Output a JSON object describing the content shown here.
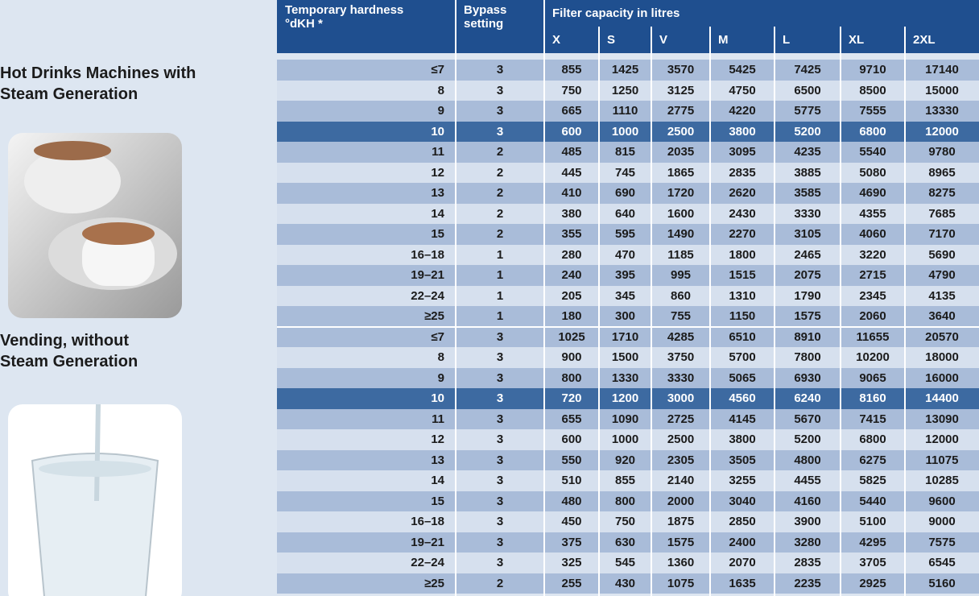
{
  "header": {
    "hardness": [
      "Temporary hardness",
      "°dKH *"
    ],
    "bypass": [
      "Bypass",
      "setting"
    ],
    "capacity": "Filter capacity in litres",
    "sizes": [
      "X",
      "S",
      "V",
      "M",
      "L",
      "XL",
      "2XL"
    ]
  },
  "groups": [
    {
      "label": [
        "Hot Drinks Machines with",
        "Steam Generation"
      ],
      "rows": [
        [
          "≤7",
          3,
          855,
          1425,
          3570,
          5425,
          7425,
          9710,
          17140
        ],
        [
          "8",
          3,
          750,
          1250,
          3125,
          4750,
          6500,
          8500,
          15000
        ],
        [
          "9",
          3,
          665,
          1110,
          2775,
          4220,
          5775,
          7555,
          13330
        ],
        [
          "10",
          3,
          600,
          1000,
          2500,
          3800,
          5200,
          6800,
          12000
        ],
        [
          "11",
          2,
          485,
          815,
          2035,
          3095,
          4235,
          5540,
          9780
        ],
        [
          "12",
          2,
          445,
          745,
          1865,
          2835,
          3885,
          5080,
          8965
        ],
        [
          "13",
          2,
          410,
          690,
          1720,
          2620,
          3585,
          4690,
          8275
        ],
        [
          "14",
          2,
          380,
          640,
          1600,
          2430,
          3330,
          4355,
          7685
        ],
        [
          "15",
          2,
          355,
          595,
          1490,
          2270,
          3105,
          4060,
          7170
        ],
        [
          "16–18",
          1,
          280,
          470,
          1185,
          1800,
          2465,
          3220,
          5690
        ],
        [
          "19–21",
          1,
          240,
          395,
          995,
          1515,
          2075,
          2715,
          4790
        ],
        [
          "22–24",
          1,
          205,
          345,
          860,
          1310,
          1790,
          2345,
          4135
        ],
        [
          "≥25",
          1,
          180,
          300,
          755,
          1150,
          1575,
          2060,
          3640
        ]
      ]
    },
    {
      "label": [
        "Vending, without",
        "Steam Generation"
      ],
      "rows": [
        [
          "≤7",
          3,
          1025,
          1710,
          4285,
          6510,
          8910,
          11655,
          20570
        ],
        [
          "8",
          3,
          900,
          1500,
          3750,
          5700,
          7800,
          10200,
          18000
        ],
        [
          "9",
          3,
          800,
          1330,
          3330,
          5065,
          6930,
          9065,
          16000
        ],
        [
          "10",
          3,
          720,
          1200,
          3000,
          4560,
          6240,
          8160,
          14400
        ],
        [
          "11",
          3,
          655,
          1090,
          2725,
          4145,
          5670,
          7415,
          13090
        ],
        [
          "12",
          3,
          600,
          1000,
          2500,
          3800,
          5200,
          6800,
          12000
        ],
        [
          "13",
          3,
          550,
          920,
          2305,
          3505,
          4800,
          6275,
          11075
        ],
        [
          "14",
          3,
          510,
          855,
          2140,
          3255,
          4455,
          5825,
          10285
        ],
        [
          "15",
          3,
          480,
          800,
          2000,
          3040,
          4160,
          5440,
          9600
        ],
        [
          "16–18",
          3,
          450,
          750,
          1875,
          2850,
          3900,
          5100,
          9000
        ],
        [
          "19–21",
          3,
          375,
          630,
          1575,
          2400,
          3280,
          4295,
          7575
        ],
        [
          "22–24",
          3,
          325,
          545,
          1360,
          2070,
          2835,
          3705,
          6545
        ],
        [
          "≥25",
          2,
          255,
          430,
          1075,
          1635,
          2235,
          2925,
          5160
        ]
      ]
    }
  ]
}
